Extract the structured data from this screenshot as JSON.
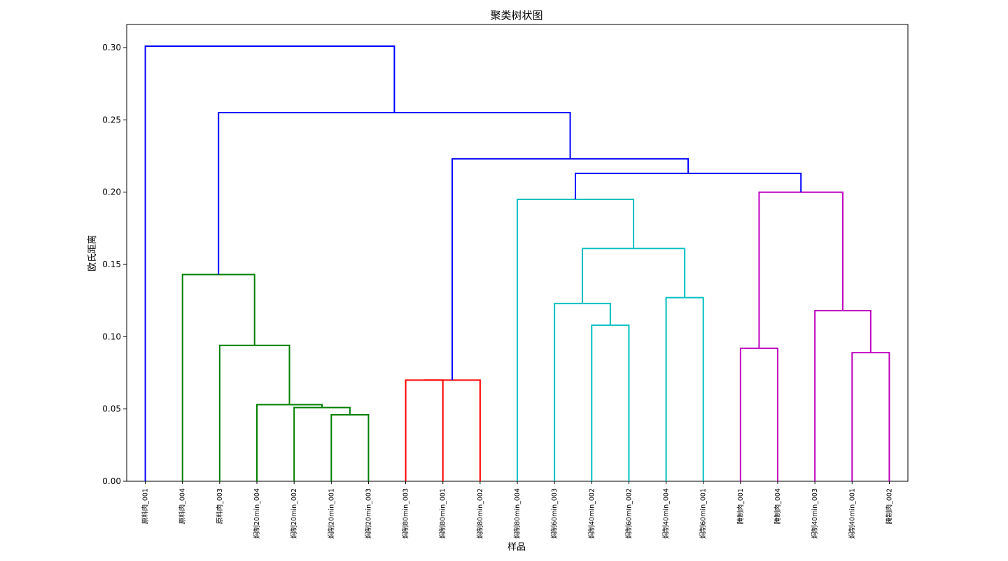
{
  "chart_data": {
    "type": "dendrogram",
    "title": "聚类树状图",
    "xlabel": "样品",
    "ylabel": "欧氏距离",
    "ylim": [
      0,
      0.316
    ],
    "yticks": [
      "0.00",
      "0.05",
      "0.10",
      "0.15",
      "0.20",
      "0.25",
      "0.30"
    ],
    "ytick_values": [
      0,
      0.05,
      0.1,
      0.15,
      0.2,
      0.25,
      0.3
    ],
    "grid": false,
    "leaves": [
      "原料肉_001",
      "原料肉_004",
      "原料肉_003",
      "焖制20min_004",
      "焖制20min_002",
      "焖制20min_001",
      "焖制20min_003",
      "焖制80min_003",
      "焖制80min_001",
      "焖制80min_002",
      "焖制80min_004",
      "焖制60min_003",
      "焖制40min_002",
      "焖制60min_002",
      "焖制40min_004",
      "焖制60min_001",
      "腌制肉_001",
      "腌制肉_004",
      "焖制40min_003",
      "焖制40min_001",
      "腌制肉_002"
    ],
    "colors": {
      "above_threshold": "#0000ff",
      "cluster1": "#008000",
      "cluster2": "#ff0000",
      "cluster3": "#00bfbf",
      "cluster4": "#bf00bf"
    },
    "merges": [
      {
        "a": "L5",
        "b": "L6",
        "height": 0.046,
        "color": "cluster1"
      },
      {
        "a": "L4",
        "b": "M0",
        "height": 0.051,
        "color": "cluster1"
      },
      {
        "a": "L3",
        "b": "M1",
        "height": 0.053,
        "color": "cluster1"
      },
      {
        "a": "L2",
        "b": "M2",
        "height": 0.094,
        "color": "cluster1"
      },
      {
        "a": "L1",
        "b": "M3",
        "height": 0.143,
        "color": "cluster1"
      },
      {
        "a": "L7",
        "b": "L8",
        "height": 0.07,
        "color": "cluster2"
      },
      {
        "a": "M5",
        "b": "L9",
        "height": 0.07,
        "color": "cluster2"
      },
      {
        "a": "L12",
        "b": "L13",
        "height": 0.108,
        "color": "cluster3"
      },
      {
        "a": "L11",
        "b": "M7",
        "height": 0.123,
        "color": "cluster3"
      },
      {
        "a": "L14",
        "b": "L15",
        "height": 0.127,
        "color": "cluster3"
      },
      {
        "a": "M8",
        "b": "M9",
        "height": 0.161,
        "color": "cluster3"
      },
      {
        "a": "L10",
        "b": "M10",
        "height": 0.195,
        "color": "cluster3"
      },
      {
        "a": "L16",
        "b": "L17",
        "height": 0.092,
        "color": "cluster4"
      },
      {
        "a": "L19",
        "b": "L20",
        "height": 0.089,
        "color": "cluster4"
      },
      {
        "a": "L18",
        "b": "M13",
        "height": 0.118,
        "color": "cluster4"
      },
      {
        "a": "M12",
        "b": "M14",
        "height": 0.2,
        "color": "cluster4"
      },
      {
        "a": "M11",
        "b": "M15",
        "height": 0.213,
        "color": "above_threshold"
      },
      {
        "a": "M6",
        "b": "M16",
        "height": 0.223,
        "color": "above_threshold"
      },
      {
        "a": "M4",
        "b": "M17",
        "height": 0.255,
        "color": "above_threshold"
      },
      {
        "a": "L0",
        "b": "M18",
        "height": 0.301,
        "color": "above_threshold"
      }
    ]
  }
}
